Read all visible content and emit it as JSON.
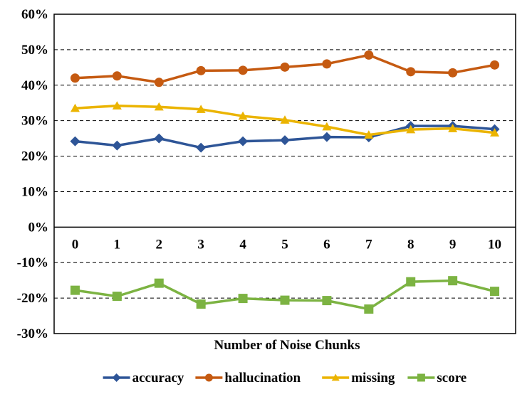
{
  "chart_data": {
    "type": "line",
    "title": "",
    "xlabel": "Number of Noise Chunks",
    "ylabel": "",
    "categories": [
      "0",
      "1",
      "2",
      "3",
      "4",
      "5",
      "6",
      "7",
      "8",
      "9",
      "10"
    ],
    "ylim": [
      -30,
      60
    ],
    "yticks": [
      60,
      50,
      40,
      30,
      20,
      10,
      0,
      -10,
      -20,
      -30
    ],
    "ytick_labels": [
      "60%",
      "50%",
      "40%",
      "30%",
      "20%",
      "10%",
      "0%",
      "-10%",
      "-20%",
      "-30%"
    ],
    "grid": "horizontal-dashed",
    "legend_position": "bottom",
    "series": [
      {
        "name": "accuracy",
        "color": "#2E5597",
        "marker": "diamond",
        "values": [
          24.2,
          23.0,
          25.0,
          22.4,
          24.2,
          24.5,
          25.4,
          25.3,
          28.5,
          28.5,
          27.6
        ]
      },
      {
        "name": "hallucination",
        "color": "#C55A11",
        "marker": "circle",
        "values": [
          42.0,
          42.6,
          40.8,
          44.1,
          44.2,
          45.1,
          46.0,
          48.5,
          43.8,
          43.5,
          45.7
        ]
      },
      {
        "name": "missing",
        "color": "#EBB400",
        "marker": "triangle",
        "values": [
          33.5,
          34.2,
          33.9,
          33.2,
          31.3,
          30.2,
          28.3,
          26.0,
          27.5,
          27.8,
          26.6
        ]
      },
      {
        "name": "score",
        "color": "#7CB342",
        "marker": "square",
        "values": [
          -17.8,
          -19.5,
          -15.8,
          -21.7,
          -20.1,
          -20.6,
          -20.7,
          -23.1,
          -15.4,
          -15.1,
          -18.1
        ]
      }
    ]
  }
}
